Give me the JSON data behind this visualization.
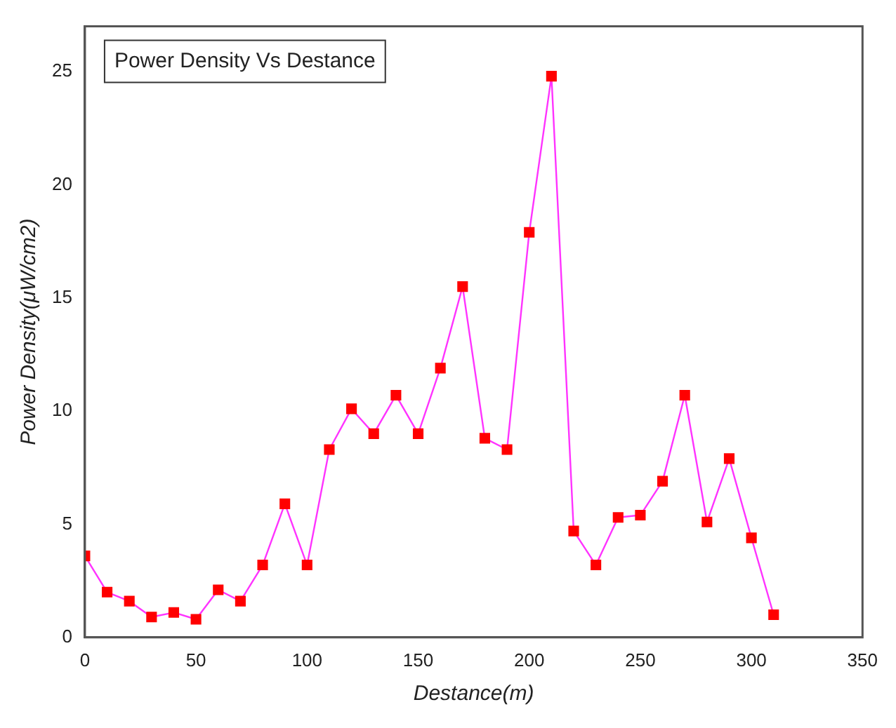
{
  "chart_data": {
    "type": "line",
    "xlabel": "Destance(m)",
    "ylabel": "Power Density(μW/cm2)",
    "annotations": [
      "Power Density Vs Destance"
    ],
    "x": [
      0,
      10,
      20,
      30,
      40,
      50,
      60,
      70,
      80,
      90,
      100,
      110,
      120,
      130,
      140,
      150,
      160,
      170,
      180,
      190,
      200,
      210,
      220,
      230,
      240,
      250,
      260,
      270,
      280,
      290,
      300,
      310
    ],
    "series": [
      {
        "color": "#ff33ff",
        "values": [
          3.6,
          2.0,
          1.6,
          0.9,
          1.1,
          0.8,
          2.1,
          1.6,
          3.2,
          5.9,
          3.2,
          8.3,
          10.1,
          9.0,
          10.7,
          9.0,
          11.9,
          15.5,
          8.8,
          8.3,
          17.9,
          24.8,
          4.7,
          3.2,
          5.3,
          5.4,
          6.9,
          10.7,
          5.1,
          7.9,
          4.4,
          1.0
        ]
      }
    ],
    "xlim": [
      0,
      350
    ],
    "xticks": [
      0,
      50,
      100,
      150,
      200,
      250,
      300,
      350
    ],
    "ylim": [
      0,
      27
    ],
    "yticks": [
      0,
      5,
      10,
      15,
      20,
      25
    ],
    "grid": false,
    "legend": false,
    "marker": "square",
    "line_style": "solid"
  }
}
